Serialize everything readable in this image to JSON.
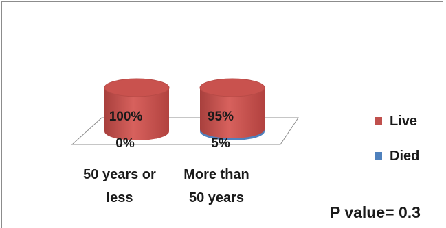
{
  "chart_data": {
    "type": "bar",
    "style": "3d-cylinder-stacked-100",
    "categories": [
      "50 years or less",
      "More than 50 years"
    ],
    "category_lines": [
      [
        "50 years or",
        "less"
      ],
      [
        "More than",
        "50 years"
      ]
    ],
    "series": [
      {
        "name": "Live",
        "color": "#c0504d",
        "values": [
          100,
          95
        ],
        "labels": [
          "100%",
          "95%"
        ]
      },
      {
        "name": "Died",
        "color": "#4f81bd",
        "values": [
          0,
          5
        ],
        "labels": [
          "0%",
          "5%"
        ]
      }
    ],
    "ylim": [
      0,
      100
    ],
    "legend_position": "right",
    "annotation": "P value= 0.3"
  }
}
